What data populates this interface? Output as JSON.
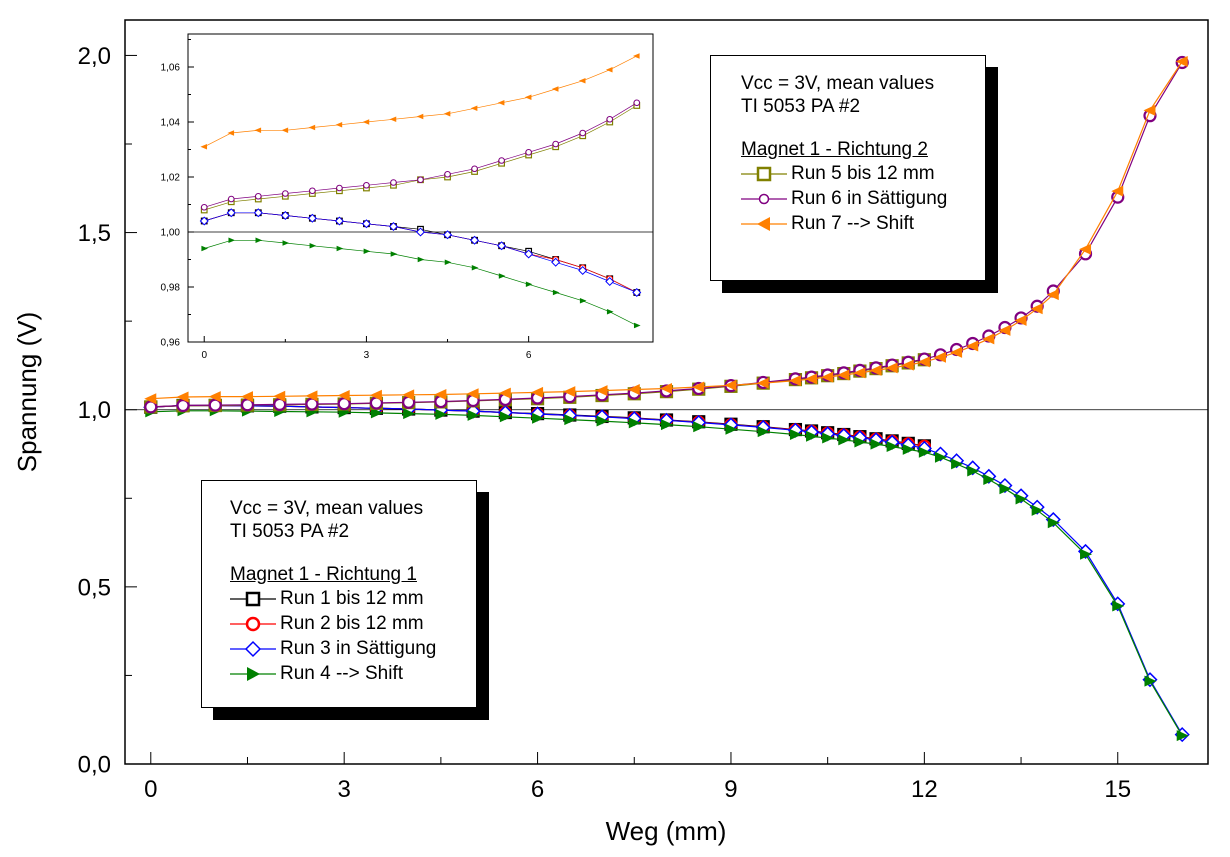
{
  "chart_data": [
    {
      "type": "line",
      "xlabel": "Weg (mm)",
      "ylabel": "Spannung (V)",
      "xlim": [
        -0.4,
        16.4
      ],
      "ylim": [
        0.0,
        2.1
      ],
      "xticks": [
        0,
        3,
        6,
        9,
        12,
        15
      ],
      "xtick_labels": [
        "0",
        "3",
        "6",
        "9",
        "12",
        "15"
      ],
      "yticks": [
        0.0,
        0.5,
        1.0,
        1.5,
        2.0
      ],
      "ytick_labels": [
        "0,0",
        "0,5",
        "1,0",
        "1,5",
        "2,0"
      ],
      "reference_line": 1.0,
      "grid": false,
      "legends": [
        {
          "lines": [
            "Vcc = 3V, mean values",
            "TI 5053 PA #2"
          ],
          "title": "Magnet 1 - Richtung 2",
          "entries": [
            "Run 5 bis 12 mm",
            "Run 6 in Sättigung",
            "Run 7 --> Shift"
          ]
        },
        {
          "lines": [
            "Vcc = 3V, mean values",
            "TI 5053 PA #2"
          ],
          "title": "Magnet 1 - Richtung 1",
          "entries": [
            "Run 1 bis 12 mm",
            "Run 2 bis 12 mm",
            "Run 3 in Sättigung",
            "Run 4 --> Shift"
          ]
        }
      ],
      "series": [
        {
          "name": "Run 1 bis 12 mm",
          "color": "#000000",
          "marker": "square",
          "x": [
            0,
            0.5,
            1,
            1.5,
            2,
            2.5,
            3,
            3.5,
            4,
            4.5,
            5,
            5.5,
            6,
            6.5,
            7,
            7.5,
            8,
            8.5,
            9,
            9.5,
            10,
            10.25,
            10.5,
            10.75,
            11,
            11.25,
            11.5,
            11.75,
            12
          ],
          "y": [
            1.007,
            1.012,
            1.012,
            1.011,
            1.01,
            1.008,
            1.006,
            1.004,
            1.002,
            0.999,
            0.996,
            0.992,
            0.989,
            0.985,
            0.981,
            0.977,
            0.971,
            0.966,
            0.959,
            0.952,
            0.944,
            0.94,
            0.935,
            0.93,
            0.924,
            0.918,
            0.912,
            0.905,
            0.898
          ]
        },
        {
          "name": "Run 2 bis 12 mm",
          "color": "#ff0000",
          "marker": "circle",
          "x": [
            0,
            0.5,
            1,
            1.5,
            2,
            2.5,
            3,
            3.5,
            4,
            4.5,
            5,
            5.5,
            6,
            6.5,
            7,
            7.5,
            8,
            8.5,
            9,
            9.5,
            10,
            10.25,
            10.5,
            10.75,
            11,
            11.25,
            11.5,
            11.75,
            12
          ],
          "y": [
            1.007,
            1.012,
            1.012,
            1.011,
            1.01,
            1.008,
            1.006,
            1.004,
            1.002,
            0.999,
            0.996,
            0.992,
            0.988,
            0.984,
            0.98,
            0.976,
            0.97,
            0.965,
            0.958,
            0.951,
            0.943,
            0.939,
            0.934,
            0.929,
            0.923,
            0.917,
            0.911,
            0.904,
            0.897
          ]
        },
        {
          "name": "Run 3 in Sättigung",
          "color": "#0000ff",
          "marker": "diamond",
          "x": [
            0,
            0.5,
            1,
            1.5,
            2,
            2.5,
            3,
            3.5,
            4,
            4.5,
            5,
            5.5,
            6,
            6.5,
            7,
            7.5,
            8,
            8.5,
            9,
            9.5,
            10,
            10.25,
            10.5,
            10.75,
            11,
            11.25,
            11.5,
            11.75,
            12,
            12.25,
            12.5,
            12.75,
            13,
            13.25,
            13.5,
            13.75,
            14,
            14.5,
            15,
            15.5,
            16
          ],
          "y": [
            1.007,
            1.012,
            1.012,
            1.011,
            1.01,
            1.008,
            1.006,
            1.004,
            1.002,
            0.999,
            0.996,
            0.992,
            0.988,
            0.984,
            0.98,
            0.975,
            0.97,
            0.964,
            0.957,
            0.95,
            0.942,
            0.937,
            0.932,
            0.927,
            0.921,
            0.915,
            0.908,
            0.9,
            0.891,
            0.875,
            0.856,
            0.836,
            0.812,
            0.786,
            0.757,
            0.725,
            0.69,
            0.6,
            0.452,
            0.238,
            0.083
          ]
        },
        {
          "name": "Run 4 --> Shift",
          "color": "#008000",
          "marker": "triangle-right",
          "x": [
            0,
            0.5,
            1,
            1.5,
            2,
            2.5,
            3,
            3.5,
            4,
            4.5,
            5,
            5.5,
            6,
            6.5,
            7,
            7.5,
            8,
            8.5,
            9,
            9.5,
            10,
            10.25,
            10.5,
            10.75,
            11,
            11.25,
            11.5,
            11.75,
            12,
            12.25,
            12.5,
            12.75,
            13,
            13.25,
            13.5,
            13.75,
            14,
            14.5,
            15,
            15.5,
            16
          ],
          "y": [
            0.994,
            0.997,
            0.997,
            0.996,
            0.995,
            0.994,
            0.993,
            0.991,
            0.989,
            0.987,
            0.984,
            0.98,
            0.976,
            0.972,
            0.968,
            0.963,
            0.958,
            0.952,
            0.945,
            0.938,
            0.93,
            0.925,
            0.92,
            0.915,
            0.909,
            0.903,
            0.896,
            0.888,
            0.88,
            0.866,
            0.847,
            0.827,
            0.803,
            0.777,
            0.748,
            0.716,
            0.681,
            0.592,
            0.446,
            0.234,
            0.08
          ]
        },
        {
          "name": "Run 5 bis 12 mm",
          "color": "#808000",
          "marker": "square",
          "x": [
            0,
            0.5,
            1,
            1.5,
            2,
            2.5,
            3,
            3.5,
            4,
            4.5,
            5,
            5.5,
            6,
            6.5,
            7,
            7.5,
            8,
            8.5,
            9,
            9.5,
            10,
            10.25,
            10.5,
            10.75,
            11,
            11.25,
            11.5,
            11.75,
            12
          ],
          "y": [
            1.008,
            1.011,
            1.012,
            1.013,
            1.014,
            1.015,
            1.016,
            1.018,
            1.02,
            1.022,
            1.025,
            1.028,
            1.031,
            1.035,
            1.04,
            1.045,
            1.051,
            1.058,
            1.066,
            1.075,
            1.085,
            1.09,
            1.096,
            1.102,
            1.109,
            1.116,
            1.124,
            1.132,
            1.141
          ]
        },
        {
          "name": "Run 6 in Sättigung",
          "color": "#800080",
          "marker": "circle",
          "x": [
            0,
            0.5,
            1,
            1.5,
            2,
            2.5,
            3,
            3.5,
            4,
            4.5,
            5,
            5.5,
            6,
            6.5,
            7,
            7.5,
            8,
            8.5,
            9,
            9.5,
            10,
            10.25,
            10.5,
            10.75,
            11,
            11.25,
            11.5,
            11.75,
            12,
            12.25,
            12.5,
            12.75,
            13,
            13.25,
            13.5,
            13.75,
            14,
            14.5,
            15,
            15.5,
            16
          ],
          "y": [
            1.008,
            1.012,
            1.013,
            1.014,
            1.015,
            1.016,
            1.017,
            1.019,
            1.021,
            1.023,
            1.026,
            1.029,
            1.033,
            1.037,
            1.042,
            1.047,
            1.053,
            1.06,
            1.068,
            1.077,
            1.087,
            1.092,
            1.098,
            1.104,
            1.111,
            1.118,
            1.126,
            1.134,
            1.143,
            1.155,
            1.17,
            1.187,
            1.208,
            1.232,
            1.259,
            1.292,
            1.335,
            1.44,
            1.6,
            1.83,
            1.98
          ]
        },
        {
          "name": "Run 7 --> Shift",
          "color": "#ff8000",
          "marker": "triangle-left",
          "x": [
            0,
            0.5,
            1,
            1.5,
            2,
            2.5,
            3,
            3.5,
            4,
            4.5,
            5,
            5.5,
            6,
            6.5,
            7,
            7.5,
            8,
            8.5,
            9,
            9.5,
            10,
            10.25,
            10.5,
            10.75,
            11,
            11.25,
            11.5,
            11.75,
            12,
            12.25,
            12.5,
            12.75,
            13,
            13.25,
            13.5,
            13.75,
            14,
            14.5,
            15,
            15.5,
            16
          ],
          "y": [
            1.031,
            1.036,
            1.037,
            1.037,
            1.038,
            1.039,
            1.04,
            1.041,
            1.042,
            1.043,
            1.045,
            1.047,
            1.049,
            1.051,
            1.054,
            1.057,
            1.06,
            1.064,
            1.069,
            1.075,
            1.082,
            1.087,
            1.092,
            1.098,
            1.104,
            1.111,
            1.118,
            1.126,
            1.135,
            1.148,
            1.162,
            1.18,
            1.2,
            1.224,
            1.252,
            1.285,
            1.325,
            1.453,
            1.617,
            1.845,
            1.983
          ]
        }
      ]
    },
    {
      "type": "line",
      "xlim": [
        -0.3,
        8.3
      ],
      "ylim": [
        0.96,
        1.072
      ],
      "xticks": [
        0,
        3,
        6
      ],
      "xtick_labels": [
        "0",
        "3",
        "6"
      ],
      "yticks": [
        0.96,
        0.98,
        1.0,
        1.02,
        1.04,
        1.06
      ],
      "ytick_labels": [
        "0,96",
        "0,98",
        "1,00",
        "1,02",
        "1,04",
        "1,06"
      ],
      "reference_line": 1.0,
      "grid": false,
      "series": [
        {
          "name": "Run 1 bis 12 mm",
          "color": "#000000",
          "marker": "square",
          "x": [
            0,
            0.5,
            1,
            1.5,
            2,
            2.5,
            3,
            3.5,
            4,
            4.5,
            5,
            5.5,
            6,
            6.5,
            7,
            7.5,
            8
          ],
          "y": [
            1.004,
            1.007,
            1.007,
            1.006,
            1.005,
            1.004,
            1.003,
            1.002,
            1.001,
            0.999,
            0.997,
            0.995,
            0.993,
            0.99,
            0.987,
            0.983,
            0.978
          ]
        },
        {
          "name": "Run 2 bis 12 mm",
          "color": "#ff0000",
          "marker": "circle",
          "x": [
            0,
            0.5,
            1,
            1.5,
            2,
            2.5,
            3,
            3.5,
            4,
            4.5,
            5,
            5.5,
            6,
            6.5,
            7,
            7.5,
            8
          ],
          "y": [
            1.004,
            1.007,
            1.007,
            1.006,
            1.005,
            1.004,
            1.003,
            1.002,
            1.0,
            0.999,
            0.997,
            0.995,
            0.992,
            0.99,
            0.987,
            0.983,
            0.978
          ]
        },
        {
          "name": "Run 3 in Sättigung",
          "color": "#0000ff",
          "marker": "diamond",
          "x": [
            0,
            0.5,
            1,
            1.5,
            2,
            2.5,
            3,
            3.5,
            4,
            4.5,
            5,
            5.5,
            6,
            6.5,
            7,
            7.5,
            8
          ],
          "y": [
            1.004,
            1.007,
            1.007,
            1.006,
            1.005,
            1.004,
            1.003,
            1.002,
            1.0,
            0.999,
            0.997,
            0.995,
            0.992,
            0.989,
            0.986,
            0.982,
            0.978
          ]
        },
        {
          "name": "Run 4 --> Shift",
          "color": "#008000",
          "marker": "triangle-right",
          "x": [
            0,
            0.5,
            1,
            1.5,
            2,
            2.5,
            3,
            3.5,
            4,
            4.5,
            5,
            5.5,
            6,
            6.5,
            7,
            7.5,
            8
          ],
          "y": [
            0.994,
            0.997,
            0.997,
            0.996,
            0.995,
            0.994,
            0.993,
            0.992,
            0.99,
            0.989,
            0.987,
            0.984,
            0.981,
            0.978,
            0.975,
            0.971,
            0.966
          ]
        },
        {
          "name": "Run 5 bis 12 mm",
          "color": "#808000",
          "marker": "square",
          "x": [
            0,
            0.5,
            1,
            1.5,
            2,
            2.5,
            3,
            3.5,
            4,
            4.5,
            5,
            5.5,
            6,
            6.5,
            7,
            7.5,
            8
          ],
          "y": [
            1.008,
            1.011,
            1.012,
            1.013,
            1.014,
            1.015,
            1.016,
            1.017,
            1.019,
            1.02,
            1.022,
            1.025,
            1.028,
            1.031,
            1.035,
            1.04,
            1.046
          ]
        },
        {
          "name": "Run 6 in Sättigung",
          "color": "#800080",
          "marker": "circle",
          "x": [
            0,
            0.5,
            1,
            1.5,
            2,
            2.5,
            3,
            3.5,
            4,
            4.5,
            5,
            5.5,
            6,
            6.5,
            7,
            7.5,
            8
          ],
          "y": [
            1.009,
            1.012,
            1.013,
            1.014,
            1.015,
            1.016,
            1.017,
            1.018,
            1.019,
            1.021,
            1.023,
            1.026,
            1.029,
            1.032,
            1.036,
            1.041,
            1.047
          ]
        },
        {
          "name": "Run 7 --> Shift",
          "color": "#ff8000",
          "marker": "triangle-left",
          "x": [
            0,
            0.5,
            1,
            1.5,
            2,
            2.5,
            3,
            3.5,
            4,
            4.5,
            5,
            5.5,
            6,
            6.5,
            7,
            7.5,
            8
          ],
          "y": [
            1.031,
            1.036,
            1.037,
            1.037,
            1.038,
            1.039,
            1.04,
            1.041,
            1.042,
            1.043,
            1.045,
            1.047,
            1.049,
            1.052,
            1.055,
            1.059,
            1.064
          ]
        }
      ]
    }
  ]
}
